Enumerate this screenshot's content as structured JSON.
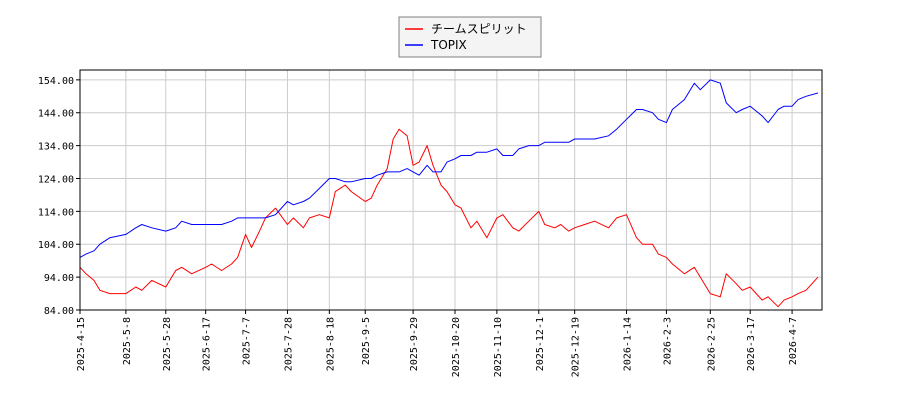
{
  "chart_data": {
    "type": "line",
    "title": "",
    "xlabel": "",
    "ylabel": "",
    "ylim": [
      84,
      157
    ],
    "xlim": [
      "2025-04-15",
      "2026-04-22"
    ],
    "grid": true,
    "legend_position": "top-center",
    "y_ticks": [
      "84.00",
      "94.00",
      "104.00",
      "114.00",
      "124.00",
      "134.00",
      "144.00",
      "154.00"
    ],
    "x_ticks": [
      "2025-4-15",
      "2025-5-8",
      "2025-5-28",
      "2025-6-17",
      "2025-7-7",
      "2025-7-28",
      "2025-8-18",
      "2025-9-5",
      "2025-9-29",
      "2025-10-20",
      "2025-11-10",
      "2025-12-1",
      "2025-12-19",
      "2026-1-14",
      "2026-2-3",
      "2026-2-25",
      "2026-3-17",
      "2026-4-7"
    ],
    "x_tick_dates": [
      "2025-04-15",
      "2025-05-08",
      "2025-05-28",
      "2025-06-17",
      "2025-07-07",
      "2025-07-28",
      "2025-08-18",
      "2025-09-05",
      "2025-09-29",
      "2025-10-20",
      "2025-11-10",
      "2025-12-01",
      "2025-12-19",
      "2026-01-14",
      "2026-02-03",
      "2026-02-25",
      "2026-03-17",
      "2026-04-07"
    ],
    "series": [
      {
        "name": "チームスピリット",
        "color": "#ff0000",
        "x": [
          "2025-04-15",
          "2025-04-18",
          "2025-04-22",
          "2025-04-25",
          "2025-04-30",
          "2025-05-08",
          "2025-05-13",
          "2025-05-16",
          "2025-05-21",
          "2025-05-28",
          "2025-06-02",
          "2025-06-05",
          "2025-06-10",
          "2025-06-17",
          "2025-06-20",
          "2025-06-25",
          "2025-06-30",
          "2025-07-03",
          "2025-07-07",
          "2025-07-10",
          "2025-07-14",
          "2025-07-17",
          "2025-07-22",
          "2025-07-28",
          "2025-07-31",
          "2025-08-05",
          "2025-08-08",
          "2025-08-13",
          "2025-08-18",
          "2025-08-21",
          "2025-08-26",
          "2025-08-29",
          "2025-09-05",
          "2025-09-08",
          "2025-09-11",
          "2025-09-16",
          "2025-09-19",
          "2025-09-22",
          "2025-09-26",
          "2025-09-29",
          "2025-10-02",
          "2025-10-06",
          "2025-10-09",
          "2025-10-13",
          "2025-10-16",
          "2025-10-20",
          "2025-10-23",
          "2025-10-28",
          "2025-10-31",
          "2025-11-05",
          "2025-11-10",
          "2025-11-13",
          "2025-11-18",
          "2025-11-21",
          "2025-11-26",
          "2025-12-01",
          "2025-12-04",
          "2025-12-09",
          "2025-12-12",
          "2025-12-16",
          "2025-12-19",
          "2025-12-24",
          "2025-12-29",
          "2026-01-05",
          "2026-01-09",
          "2026-01-14",
          "2026-01-19",
          "2026-01-22",
          "2026-01-27",
          "2026-01-30",
          "2026-02-03",
          "2026-02-06",
          "2026-02-12",
          "2026-02-17",
          "2026-02-20",
          "2026-02-25",
          "2026-03-02",
          "2026-03-05",
          "2026-03-10",
          "2026-03-13",
          "2026-03-17",
          "2026-03-23",
          "2026-03-26",
          "2026-03-31",
          "2026-04-03",
          "2026-04-07",
          "2026-04-10",
          "2026-04-14",
          "2026-04-20"
        ],
        "values": [
          97,
          95,
          93,
          90,
          89,
          89,
          91,
          90,
          93,
          91,
          96,
          97,
          95,
          97,
          98,
          96,
          98,
          100,
          107,
          103,
          108,
          112,
          115,
          110,
          112,
          109,
          112,
          113,
          112,
          120,
          122,
          120,
          117,
          118,
          122,
          127,
          136,
          139,
          137,
          128,
          129,
          134,
          128,
          122,
          120,
          116,
          115,
          109,
          111,
          106,
          112,
          113,
          109,
          108,
          111,
          114,
          110,
          109,
          110,
          108,
          109,
          110,
          111,
          109,
          112,
          113,
          106,
          104,
          104,
          101,
          100,
          98,
          95,
          97,
          94,
          89,
          88,
          95,
          92,
          90,
          91,
          87,
          88,
          85,
          87,
          88,
          89,
          90,
          94
        ]
      },
      {
        "name": "TOPIX",
        "color": "#0000ff",
        "x": [
          "2025-04-15",
          "2025-04-18",
          "2025-04-22",
          "2025-04-25",
          "2025-04-30",
          "2025-05-08",
          "2025-05-13",
          "2025-05-16",
          "2025-05-21",
          "2025-05-28",
          "2025-06-02",
          "2025-06-05",
          "2025-06-10",
          "2025-06-17",
          "2025-06-20",
          "2025-06-25",
          "2025-06-30",
          "2025-07-03",
          "2025-07-07",
          "2025-07-10",
          "2025-07-14",
          "2025-07-17",
          "2025-07-22",
          "2025-07-28",
          "2025-07-31",
          "2025-08-05",
          "2025-08-08",
          "2025-08-13",
          "2025-08-18",
          "2025-08-21",
          "2025-08-26",
          "2025-08-29",
          "2025-09-05",
          "2025-09-08",
          "2025-09-11",
          "2025-09-16",
          "2025-09-19",
          "2025-09-22",
          "2025-09-26",
          "2025-09-29",
          "2025-10-02",
          "2025-10-06",
          "2025-10-09",
          "2025-10-13",
          "2025-10-16",
          "2025-10-20",
          "2025-10-23",
          "2025-10-28",
          "2025-10-31",
          "2025-11-05",
          "2025-11-10",
          "2025-11-13",
          "2025-11-18",
          "2025-11-21",
          "2025-11-26",
          "2025-12-01",
          "2025-12-04",
          "2025-12-09",
          "2025-12-12",
          "2025-12-16",
          "2025-12-19",
          "2025-12-24",
          "2025-12-29",
          "2026-01-05",
          "2026-01-09",
          "2026-01-14",
          "2026-01-19",
          "2026-01-22",
          "2026-01-27",
          "2026-01-30",
          "2026-02-03",
          "2026-02-06",
          "2026-02-12",
          "2026-02-17",
          "2026-02-20",
          "2026-02-25",
          "2026-03-02",
          "2026-03-05",
          "2026-03-10",
          "2026-03-13",
          "2026-03-17",
          "2026-03-23",
          "2026-03-26",
          "2026-03-31",
          "2026-04-03",
          "2026-04-07",
          "2026-04-10",
          "2026-04-14",
          "2026-04-20"
        ],
        "values": [
          100,
          101,
          102,
          104,
          106,
          107,
          109,
          110,
          109,
          108,
          109,
          111,
          110,
          110,
          110,
          110,
          111,
          112,
          112,
          112,
          112,
          112,
          113,
          117,
          116,
          117,
          118,
          121,
          124,
          124,
          123,
          123,
          124,
          124,
          125,
          126,
          126,
          126,
          127,
          126,
          125,
          128,
          126,
          126,
          129,
          130,
          131,
          131,
          132,
          132,
          133,
          131,
          131,
          133,
          134,
          134,
          135,
          135,
          135,
          135,
          136,
          136,
          136,
          137,
          139,
          142,
          145,
          145,
          144,
          142,
          141,
          145,
          148,
          153,
          151,
          154,
          153,
          147,
          144,
          145,
          146,
          143,
          141,
          145,
          146,
          146,
          148,
          149,
          150
        ]
      }
    ]
  }
}
